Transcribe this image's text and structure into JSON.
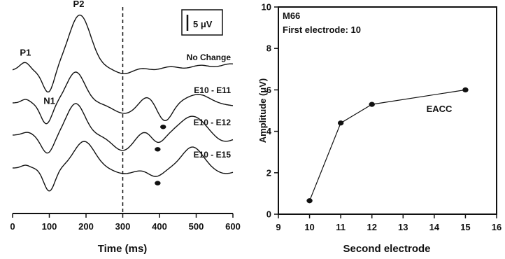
{
  "chart_data": [
    {
      "type": "line",
      "xlabel": "Time (ms)",
      "xlim": [
        0,
        600
      ],
      "x_ticks": [
        "0",
        "100",
        "200",
        "300",
        "400",
        "500",
        "600"
      ],
      "scale_bar_label": "5 μV",
      "marker_line_x": 300,
      "peak_labels": [
        {
          "text": "P1",
          "x": 35
        },
        {
          "text": "P2",
          "x": 180
        },
        {
          "text": "N1",
          "x": 100
        }
      ],
      "series": [
        {
          "name": "No Change"
        },
        {
          "name": "E10 - E11"
        },
        {
          "name": "E10 - E12"
        },
        {
          "name": "E10 - E15"
        }
      ],
      "dot_times": [
        410,
        395,
        395
      ]
    },
    {
      "type": "line",
      "xlabel": "Second electrode",
      "ylabel": "Amplitude (μV)",
      "xlim": [
        9,
        16
      ],
      "ylim": [
        0,
        10
      ],
      "x_ticks": [
        "9",
        "10",
        "11",
        "12",
        "13",
        "14",
        "15",
        "16"
      ],
      "y_ticks": [
        "0",
        "2",
        "4",
        "6",
        "8",
        "10"
      ],
      "annotations": [
        "M66",
        "First electrode: 10"
      ],
      "series": [
        {
          "name": "EACC",
          "x": [
            10,
            11,
            12,
            15
          ],
          "y": [
            0.65,
            4.4,
            5.3,
            6.0
          ]
        }
      ]
    }
  ]
}
